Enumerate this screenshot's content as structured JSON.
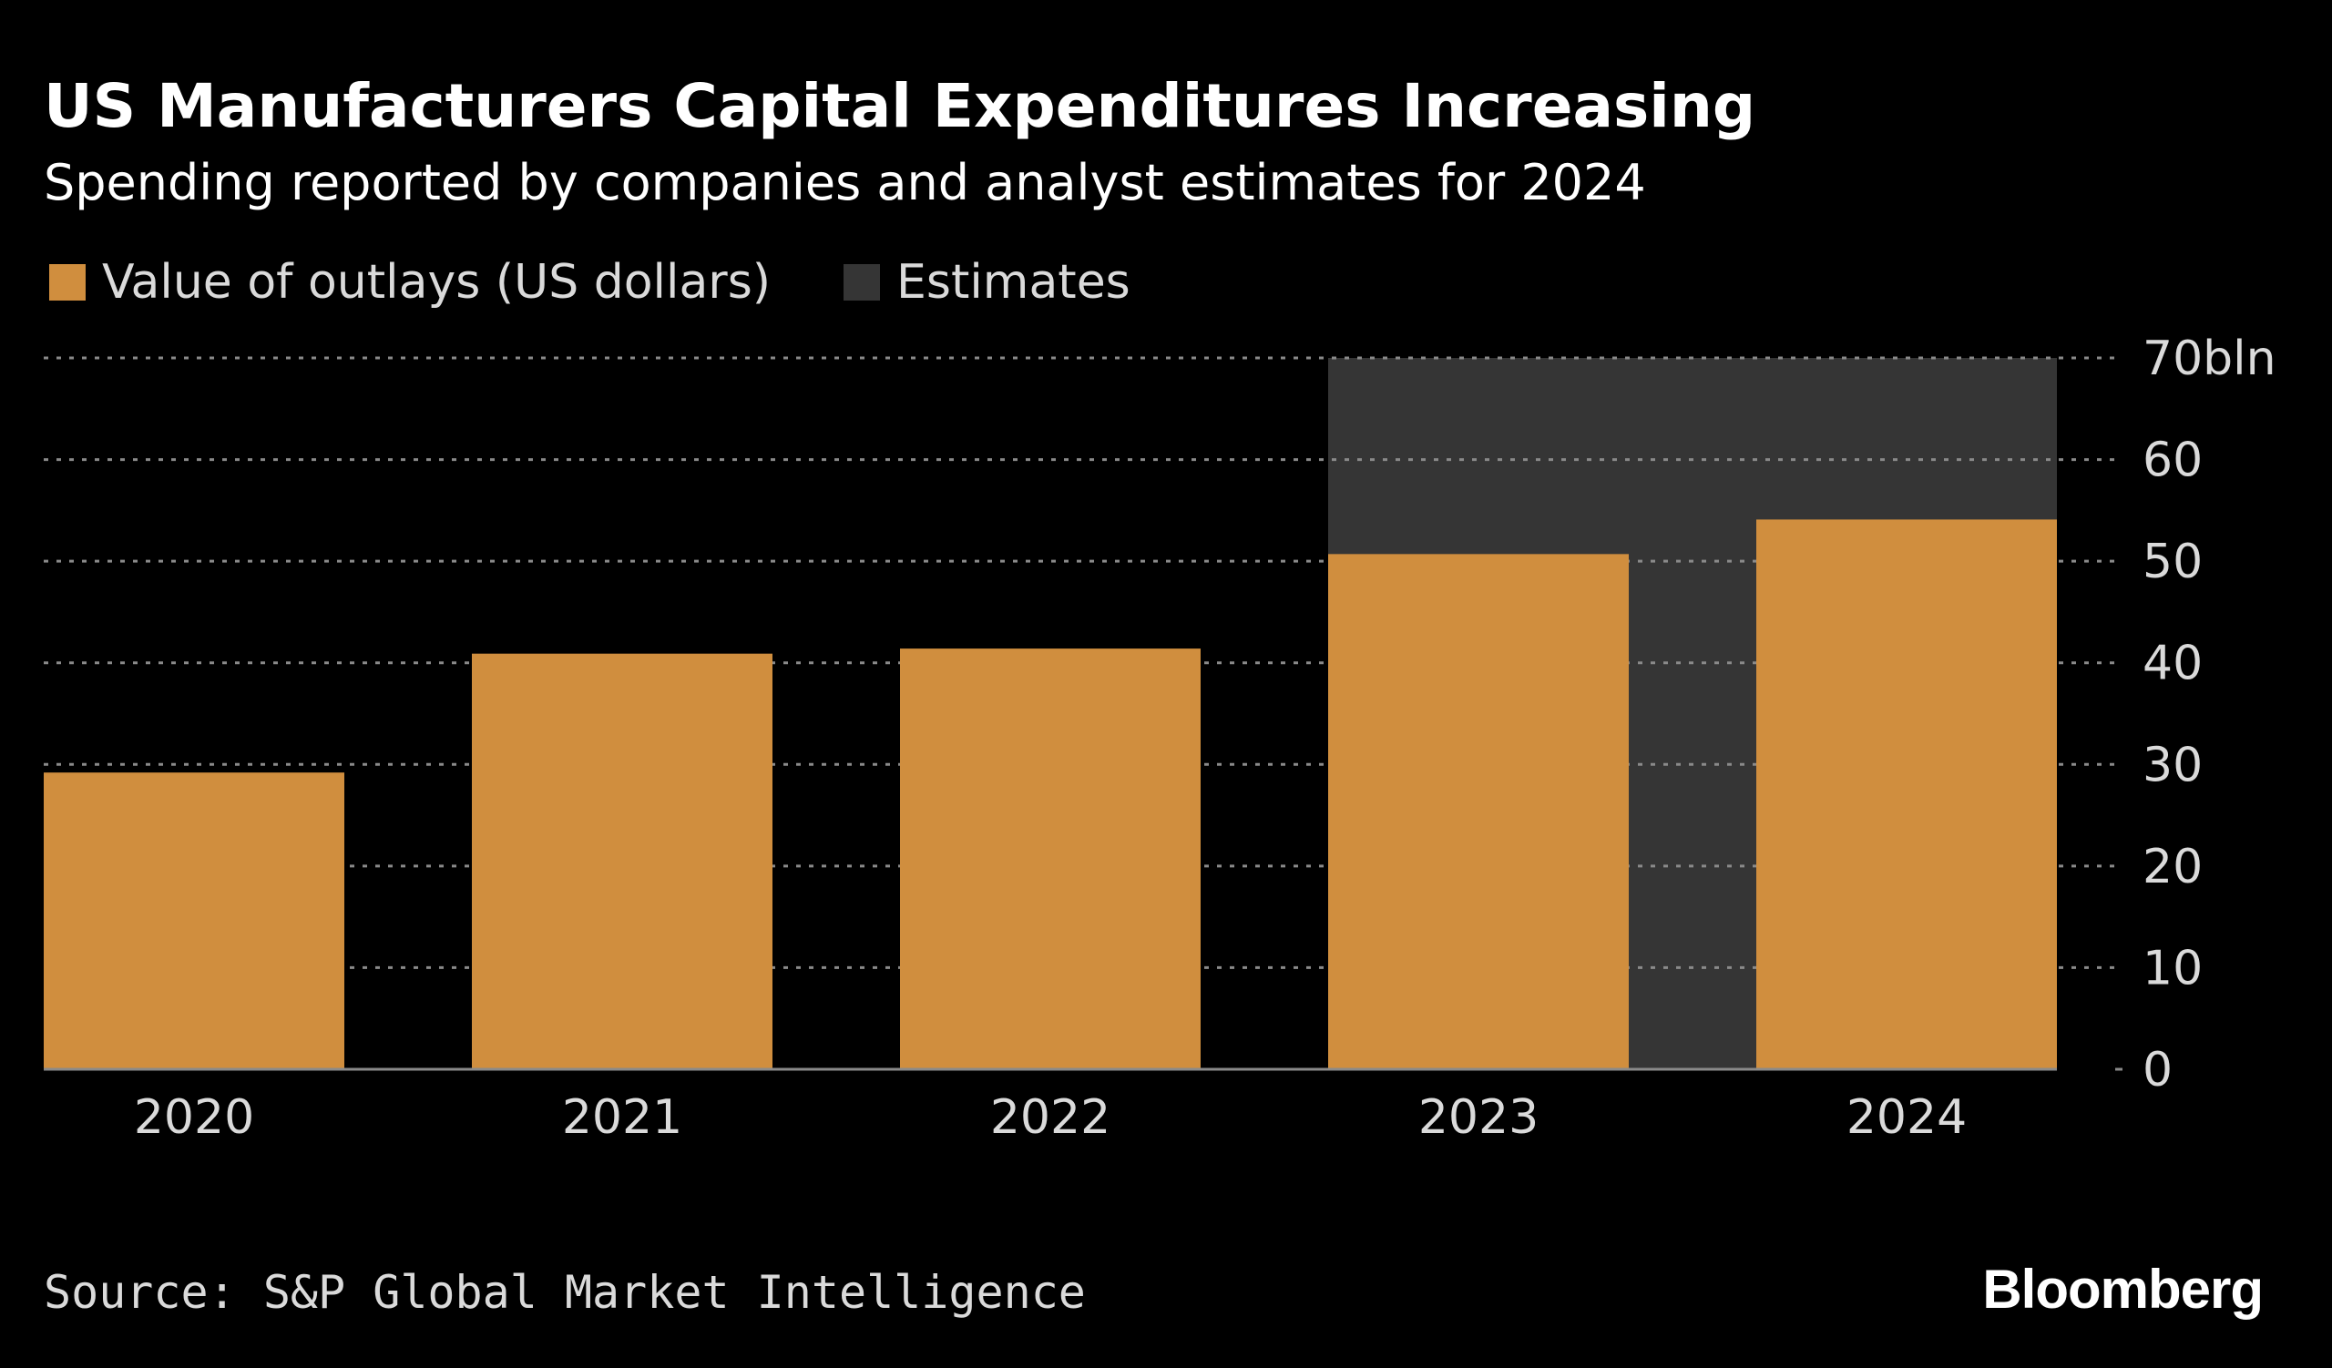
{
  "chart_data": {
    "type": "bar",
    "title": "US Manufacturers Capital Expenditures Increasing",
    "subtitle": "Spending reported by companies and analyst estimates for 2024",
    "categories": [
      "2020",
      "2021",
      "2022",
      "2023",
      "2024"
    ],
    "series": [
      {
        "name": "Value of outlays (US dollars)",
        "values": [
          29.2,
          40.9,
          41.4,
          50.7,
          54.1
        ],
        "color": "#d08e3e"
      }
    ],
    "estimate_region": {
      "name": "Estimates",
      "categories": [
        "2023",
        "2024"
      ],
      "color": "#353535"
    },
    "y_ticks": [
      0,
      10,
      20,
      30,
      40,
      50,
      60,
      70
    ],
    "y_tick_labels": [
      "0",
      "10",
      "20",
      "30",
      "40",
      "50",
      "60",
      "70bln"
    ],
    "ylim": [
      0,
      70
    ],
    "xlabel": "",
    "ylabel": "",
    "grid": true,
    "legend_position": "top-left",
    "source": "Source: S&P Global Market Intelligence",
    "brand": "Bloomberg"
  }
}
